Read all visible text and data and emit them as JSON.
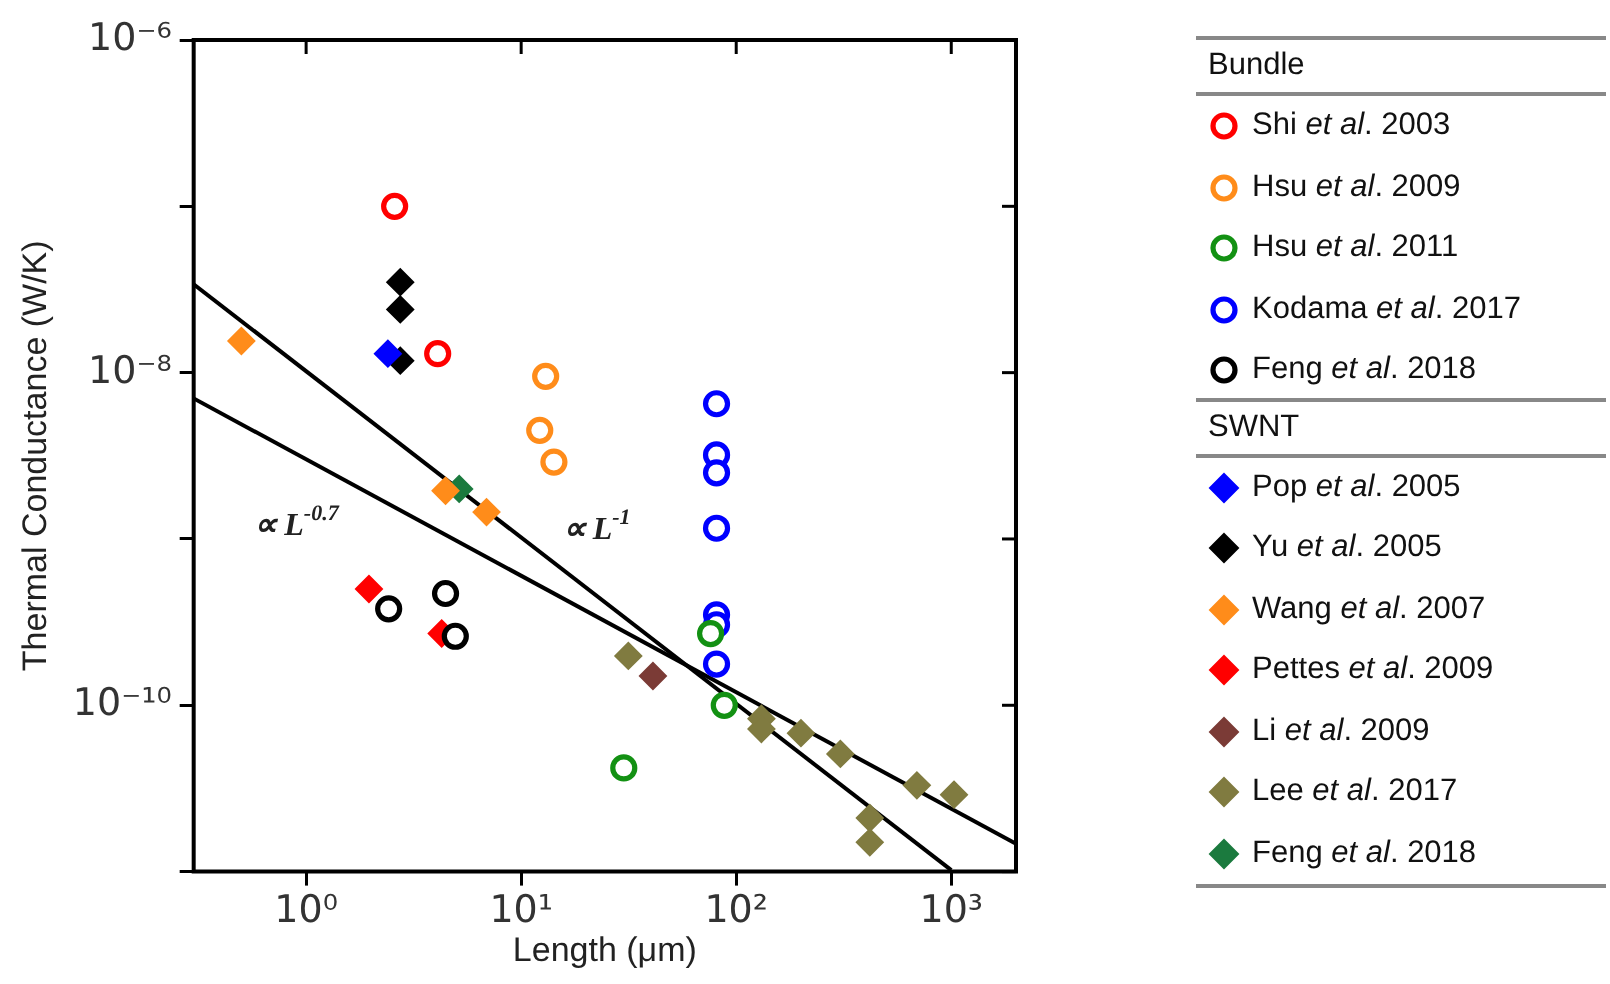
{
  "chart_data": {
    "type": "scatter",
    "xlabel": "Length (μm)",
    "ylabel": "Thermal Conductance (W/K)",
    "log": "xy",
    "grid": false,
    "legend": "right",
    "xlim": [
      0.3,
      2000
    ],
    "ylim": [
      1e-11,
      1e-06
    ],
    "xticks": [
      {
        "value": 1,
        "label": "10⁰"
      },
      {
        "value": 10,
        "label": "10¹"
      },
      {
        "value": 100,
        "label": "10²"
      },
      {
        "value": 1000,
        "label": "10³"
      }
    ],
    "yticks": [
      {
        "value": 1e-11,
        "label": null
      },
      {
        "value": 1e-10,
        "label": "10⁻¹⁰"
      },
      {
        "value": 1e-09,
        "label": null
      },
      {
        "value": 1e-08,
        "label": "10⁻⁸"
      },
      {
        "value": 1e-07,
        "label": null
      },
      {
        "value": 1e-06,
        "label": "10⁻⁶"
      }
    ],
    "annotations": [
      "Bundle",
      "SWNT",
      "∝ L$^{-0.7}$",
      "∝ L$^{-1}$"
    ],
    "series": [
      {
        "name": "Shi et al. 2003",
        "marker": "circle",
        "color": "#ff0000",
        "x": [
          2.58,
          4.09
        ],
        "values": [
          1e-07,
          1.3e-08
        ]
      },
      {
        "name": "Hsu et al. 2009",
        "marker": "circle",
        "color": "#ff8c1a",
        "x": [
          13,
          12.2,
          14.2
        ],
        "values": [
          9.5e-09,
          4.5e-09,
          2.9e-09
        ]
      },
      {
        "name": "Hsu et al. 2011",
        "marker": "circle",
        "color": "#139113",
        "x": [
          30,
          76,
          88
        ],
        "values": [
          4.2e-11,
          2.7e-10,
          1e-10
        ]
      },
      {
        "name": "Kodama et al. 2017",
        "marker": "circle",
        "color": "#0000ff",
        "x": [
          81,
          81,
          81,
          81,
          81,
          81,
          81
        ],
        "values": [
          6.5e-09,
          3.2e-09,
          2.5e-09,
          1.16e-09,
          3.5e-10,
          3.05e-10,
          1.77e-10
        ]
      },
      {
        "name": "Feng et al. 2018",
        "marker": "circle",
        "color": "#000000",
        "x": [
          2.42,
          4.45,
          4.94
        ],
        "values": [
          3.8e-10,
          4.7e-10,
          2.6e-10
        ]
      },
      {
        "name": "Pop et al. 2005",
        "marker": "diamond",
        "color": "#0000ff",
        "x": [
          2.4
        ],
        "values": [
          1.3e-08
        ]
      },
      {
        "name": "Yu et al. 2005",
        "marker": "diamond",
        "color": "#000000",
        "x": [
          2.74,
          2.74,
          2.74
        ],
        "values": [
          3.5e-08,
          2.4e-08,
          1.18e-08
        ]
      },
      {
        "name": "Wang et al. 2007",
        "marker": "diamond",
        "color": "#ff8c1a",
        "x": [
          0.5,
          4.45,
          6.9
        ],
        "values": [
          1.55e-08,
          1.95e-09,
          1.45e-09
        ]
      },
      {
        "name": "Pettes et al. 2009",
        "marker": "diamond",
        "color": "#ff0000",
        "x": [
          1.96,
          4.27
        ],
        "values": [
          5e-10,
          2.7e-10
        ]
      },
      {
        "name": "Li et al. 2009",
        "marker": "diamond",
        "color": "#7b3b36",
        "x": [
          41
        ],
        "values": [
          1.5e-10
        ]
      },
      {
        "name": "Lee et al. 2017",
        "marker": "diamond",
        "color": "#807b40",
        "x": [
          31.5,
          131,
          131,
          200,
          305,
          418,
          418,
          692,
          1030
        ],
        "values": [
          1.98e-10,
          8.3e-11,
          7.2e-11,
          6.8e-11,
          5.1e-11,
          2.1e-11,
          1.5e-11,
          3.3e-11,
          2.9e-11
        ]
      },
      {
        "name": "Feng et al. 2018",
        "marker": "diamond",
        "color": "#1b7a3e",
        "x": [
          5.15
        ],
        "values": [
          2e-09
        ]
      },
      {
        "type": "line",
        "marker": "none",
        "color": "#000000",
        "x": [
          0.3,
          1000
        ],
        "values": [
          3.4e-08,
          1.02e-11
        ]
      },
      {
        "type": "line",
        "marker": "none",
        "color": "#000000",
        "x": [
          0.3,
          2000
        ],
        "values": [
          7e-09,
          1.47e-11
        ]
      }
    ]
  }
}
